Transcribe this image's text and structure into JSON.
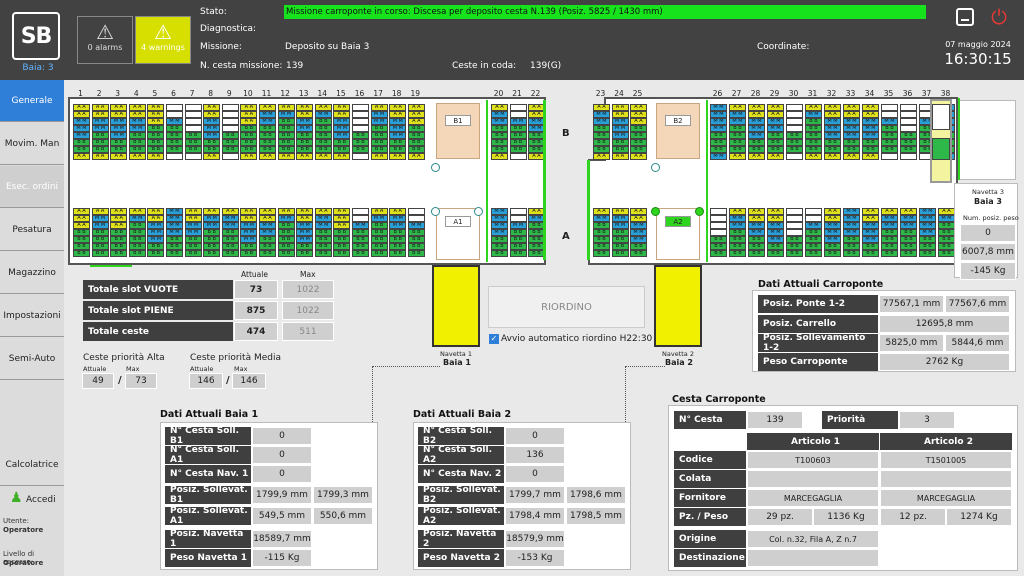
{
  "header": {
    "baia_label": "Baia: 3",
    "alarms_label": "0 alarms",
    "warnings_label": "4 warnings",
    "stato_label": "Stato:",
    "stato_value": "Missione carroponte in corso: Discesa per deposito cesta N.139 (Posiz. 5825 / 1430 mm)",
    "diagnostica_label": "Diagnostica:",
    "missione_label": "Missione:",
    "missione_value": "Deposito su Baia 3",
    "ncesta_label": "N. cesta missione:",
    "ncesta_value": "139",
    "coda_label": "Ceste in coda:",
    "coda_value": "139(G)",
    "coordinate_label": "Coordinate:",
    "date": "07 maggio 2024",
    "time": "16:30:15",
    "logo_text": "SB"
  },
  "sidebar": {
    "items": [
      "Generale",
      "Movim. Man",
      "Esec. ordini",
      "Pesatura",
      "Magazzino",
      "Impostazioni",
      "Semi-Auto",
      "Calcolatrice"
    ],
    "accedi": "Accedi",
    "utente_label": "Utente:",
    "utente_value": "Operatore",
    "livello_label": "Livello di accesso:",
    "livello_value": "Operatore"
  },
  "map": {
    "left_numbers": [
      "1",
      "2",
      "3",
      "4",
      "5",
      "6",
      "7",
      "8",
      "9",
      "10",
      "11",
      "12",
      "13",
      "14",
      "15",
      "16",
      "17",
      "18",
      "19"
    ],
    "mid_numbers": [
      "20",
      "21",
      "22"
    ],
    "right_numbers_a": [
      "23",
      "24",
      "25"
    ],
    "right_numbers_b": [
      "26",
      "27",
      "28",
      "29",
      "30",
      "31",
      "32",
      "33",
      "34",
      "35",
      "36",
      "37",
      "38"
    ],
    "row_b": "B",
    "row_a": "A",
    "b1": "B1",
    "a1": "A1",
    "b2": "B2",
    "a2": "A2",
    "navetta1_title": "Navetta 1",
    "navetta1_sub": "Baia 1",
    "navetta2_title": "Navetta 2",
    "navetta2_sub": "Baia 2",
    "navetta3_title": "Navetta 3",
    "navetta3_sub": "Baia 3",
    "navetta3_header": "Num. posiz. peso",
    "navetta3_values": [
      "0",
      "6007,8 mm",
      "-145 Kg"
    ]
  },
  "totals": {
    "attuale_label": "Attuale",
    "max_label": "Max",
    "rows": [
      {
        "label": "Totale slot VUOTE",
        "attuale": "73",
        "max": "1022"
      },
      {
        "label": "Totale slot PIENE",
        "attuale": "875",
        "max": "1022"
      },
      {
        "label": "Totale ceste",
        "attuale": "474",
        "max": "511"
      }
    ]
  },
  "priority": {
    "alta_label": "Ceste priorità Alta",
    "media_label": "Ceste priorità Media",
    "attuale_label": "Attuale",
    "max_label": "Max",
    "alta_attuale": "49",
    "alta_max": "73",
    "media_attuale": "146",
    "media_max": "146",
    "sep": "/"
  },
  "riordino": {
    "button": "RIORDINO",
    "checkbox_label": "Avvio automatico riordino H22:30"
  },
  "carroponte": {
    "title": "Dati Attuali Carroponte",
    "rows": [
      {
        "label": "Posiz. Ponte 1-2",
        "v1": "77567,1 mm",
        "v2": "77567,6 mm"
      },
      {
        "label": "Posiz. Carrello",
        "v1": "12695,8 mm"
      },
      {
        "label": "Posiz. Sollevamento 1-2",
        "v1": "5825,0 mm",
        "v2": "5844,6 mm"
      },
      {
        "label": "Peso Carroponte",
        "v1": "2762 Kg"
      }
    ]
  },
  "baia1": {
    "title": "Dati Attuali Baia 1",
    "rows": [
      {
        "label": "N° Cesta Soll. B1",
        "v1": "0"
      },
      {
        "label": "N° Cesta Soll. A1",
        "v1": "0"
      },
      {
        "label": "N° Cesta Nav. 1",
        "v1": "0"
      },
      {
        "label": "Posiz. Sollevat. B1",
        "v1": "1799,9 mm",
        "v2": "1799,3 mm"
      },
      {
        "label": "Posiz. Sollevat. A1",
        "v1": "549,5 mm",
        "v2": "550,6 mm"
      },
      {
        "label": "Posiz. Navetta 1",
        "v1": "18589,7 mm"
      },
      {
        "label": "Peso Navetta 1",
        "v1": "-115 Kg"
      }
    ]
  },
  "baia2": {
    "title": "Dati Attuali Baia 2",
    "rows": [
      {
        "label": "N° Cesta Soll. B2",
        "v1": "0"
      },
      {
        "label": "N° Cesta Soll. A2",
        "v1": "136"
      },
      {
        "label": "N° Cesta Nav. 2",
        "v1": "0"
      },
      {
        "label": "Posiz. Sollevat. B2",
        "v1": "1799,7 mm",
        "v2": "1798,6 mm"
      },
      {
        "label": "Posiz. Sollevat. A2",
        "v1": "1798,4 mm",
        "v2": "1798,5 mm"
      },
      {
        "label": "Posiz. Navetta 2",
        "v1": "18579,9 mm"
      },
      {
        "label": "Peso Navetta 2",
        "v1": "-153 Kg"
      }
    ]
  },
  "cesta": {
    "title": "Cesta Carroponte",
    "ncesta_label": "N° Cesta",
    "ncesta_value": "139",
    "priorita_label": "Priorità",
    "priorita_value": "3",
    "art1": "Articolo 1",
    "art2": "Articolo 2",
    "codice_label": "Codice",
    "codice1": "T100603",
    "codice2": "T1501005",
    "colata_label": "Colata",
    "fornitore_label": "Fornitore",
    "fornitore1": "MARCEGAGLIA",
    "fornitore2": "MARCEGAGLIA",
    "pz_label": "Pz. / Peso",
    "pz1": "29 pz.",
    "peso1": "1136 Kg",
    "pz2": "12 pz.",
    "peso2": "1274 Kg",
    "origine_label": "Origine",
    "origine_value": "Col. n.32, Fila A, Z n.7",
    "destinazione_label": "Destinazione"
  },
  "colors": {
    "green": "#2fb84a",
    "yellow": "#dfe11b",
    "blue": "#2aa0d8",
    "accent": "#2f7fd8"
  }
}
